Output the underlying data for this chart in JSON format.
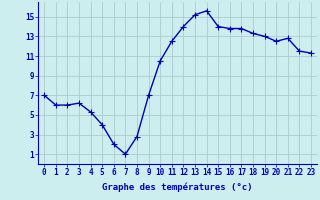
{
  "x": [
    0,
    1,
    2,
    3,
    4,
    5,
    6,
    7,
    8,
    9,
    10,
    11,
    12,
    13,
    14,
    15,
    16,
    17,
    18,
    19,
    20,
    21,
    22,
    23
  ],
  "y": [
    7.0,
    6.0,
    6.0,
    6.2,
    5.3,
    4.0,
    2.0,
    1.0,
    2.8,
    7.0,
    10.5,
    12.5,
    14.0,
    15.2,
    15.6,
    14.0,
    13.8,
    13.8,
    13.3,
    13.0,
    12.5,
    12.8,
    11.5,
    11.3
  ],
  "line_color": "#0000bb",
  "marker": "+",
  "marker_size": 4,
  "bg_color": "#cceeee",
  "grid_color": "#aacccc",
  "xlabel": "Graphe des températures (°c)",
  "xlabel_color": "#0000bb",
  "ylabel_ticks": [
    1,
    3,
    5,
    7,
    9,
    11,
    13,
    15
  ],
  "xtick_labels": [
    "0",
    "1",
    "2",
    "3",
    "4",
    "5",
    "6",
    "7",
    "8",
    "9",
    "10",
    "11",
    "12",
    "13",
    "14",
    "15",
    "16",
    "17",
    "18",
    "19",
    "20",
    "21",
    "22",
    "23"
  ],
  "xlim": [
    -0.5,
    23.5
  ],
  "ylim": [
    0.0,
    16.5
  ],
  "tick_color": "#0000bb",
  "tick_labelsize": 5.5,
  "xlabel_fontsize": 6.5,
  "linewidth": 1.0,
  "marker_linewidth": 0.8
}
